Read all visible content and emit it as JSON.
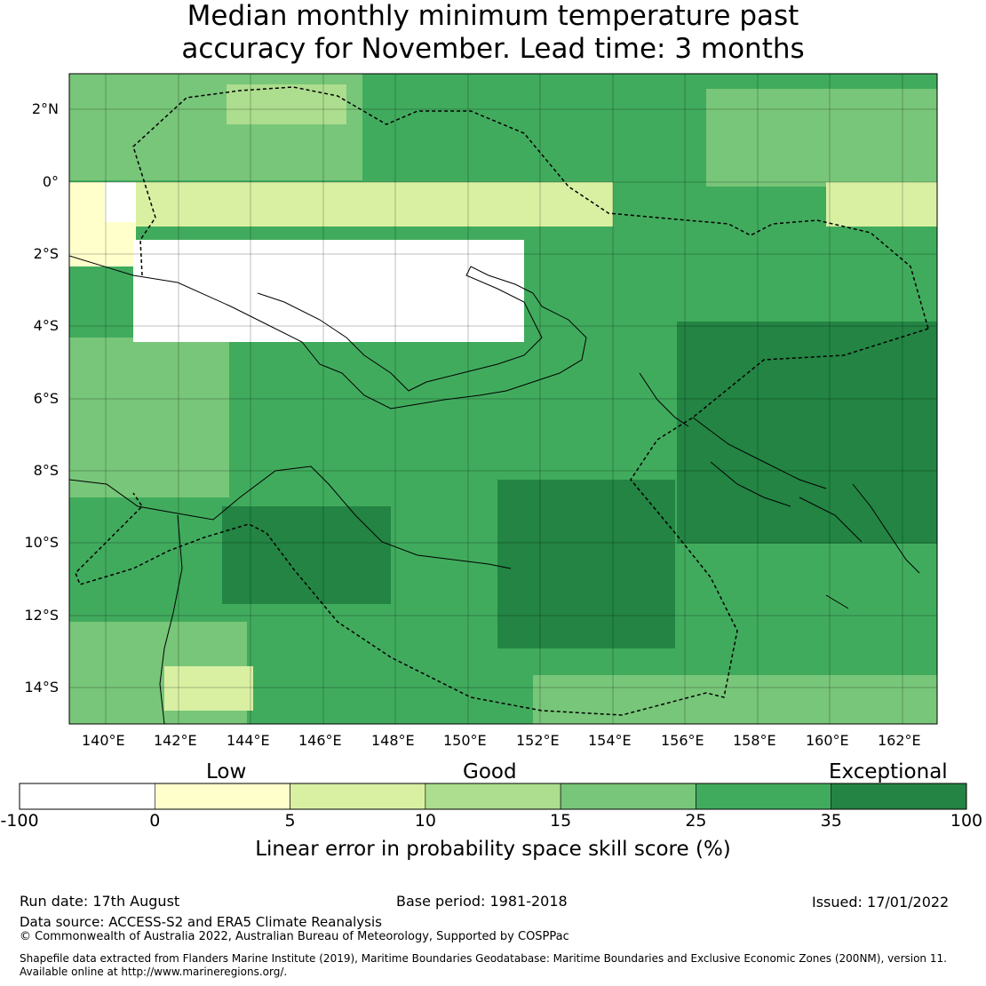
{
  "title_line1": "Median monthly minimum temperature past",
  "title_line2": "accuracy for November. Lead time: 3 months",
  "map": {
    "lon_ticks": [
      "140°E",
      "142°E",
      "144°E",
      "146°E",
      "148°E",
      "150°E",
      "152°E",
      "154°E",
      "156°E",
      "158°E",
      "160°E",
      "162°E"
    ],
    "lat_ticks": [
      "2°N",
      "0°",
      "2°S",
      "4°S",
      "6°S",
      "8°S",
      "10°S",
      "12°S",
      "14°S"
    ]
  },
  "legend": {
    "categories": [
      "Low",
      "Good",
      "Exceptional"
    ],
    "bins": [
      {
        "from": -100,
        "to": 0,
        "color": "#ffffff"
      },
      {
        "from": 0,
        "to": 5,
        "color": "#ffffcc"
      },
      {
        "from": 5,
        "to": 10,
        "color": "#d9f0a3"
      },
      {
        "from": 10,
        "to": 15,
        "color": "#addd8e"
      },
      {
        "from": 15,
        "to": 25,
        "color": "#78c679"
      },
      {
        "from": 25,
        "to": 35,
        "color": "#41ab5d"
      },
      {
        "from": 35,
        "to": 100,
        "color": "#238443"
      }
    ],
    "tick_labels": [
      "-100",
      "0",
      "5",
      "10",
      "15",
      "25",
      "35",
      "100"
    ],
    "label": "Linear error in probability space skill score (%)"
  },
  "footer": {
    "run_date": "Run date: 17th August",
    "base_period": "Base period: 1981-2018",
    "issued": "Issued: 17/01/2022",
    "data_source": "Data source: ACCESS-S2 and ERA5 Climate Reanalysis",
    "copyright": "© Commonwealth of Australia 2022, Australian Bureau of Meteorology, Supported by COSPPac",
    "shapefile_1": "Shapefile data extracted from Flanders Marine Institute (2019), Maritime Boundaries Geodatabase: Maritime Boundaries and Exclusive Economic Zones (200NM), version 11.",
    "shapefile_2": "Available online at http://www.marineregions.org/."
  }
}
